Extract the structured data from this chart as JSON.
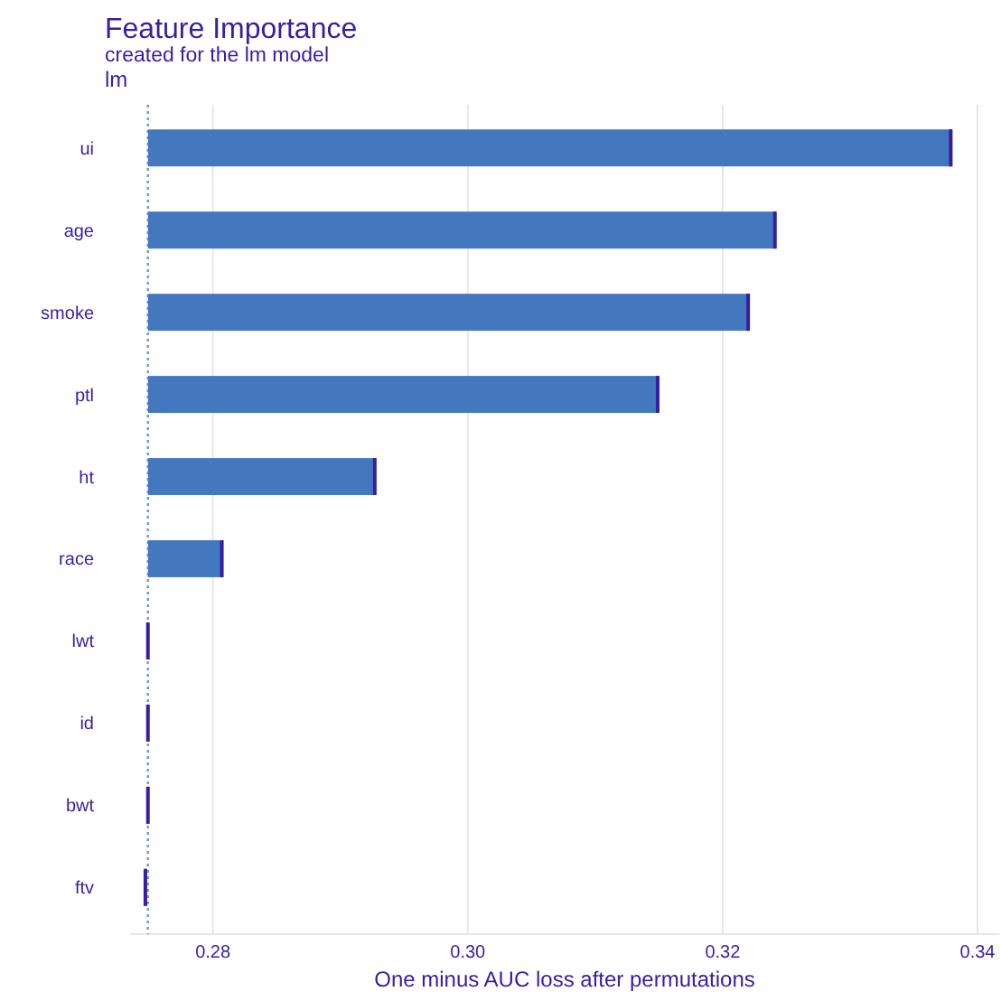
{
  "chart_data": {
    "type": "bar",
    "orientation": "horizontal",
    "title": "Feature Importance",
    "subtitle": "created for the lm model",
    "annotations": [
      "lm"
    ],
    "xlabel": "One minus AUC loss after permutations",
    "categories": [
      "ui",
      "age",
      "smoke",
      "ptl",
      "ht",
      "race",
      "lwt",
      "id",
      "bwt",
      "ftv"
    ],
    "series": [
      {
        "color": "#4378bf",
        "base": [
          0.2749,
          0.2749,
          0.2749,
          0.2749,
          0.2749,
          0.2749,
          null,
          null,
          null,
          null
        ],
        "values": [
          0.063,
          0.0492,
          0.0471,
          0.04,
          0.0178,
          0.0058,
          null,
          null,
          null,
          null
        ]
      },
      {
        "type": "box",
        "color": "#371ea3",
        "boxes": [
          {
            "low": 0.3379,
            "q1": 0.3379,
            "median": 0.3379,
            "q3": 0.3379,
            "high": 0.3379
          },
          {
            "low": 0.3241,
            "q1": 0.3241,
            "median": 0.3241,
            "q3": 0.3241,
            "high": 0.3241
          },
          {
            "low": 0.322,
            "q1": 0.322,
            "median": 0.322,
            "q3": 0.322,
            "high": 0.322
          },
          {
            "low": 0.3149,
            "q1": 0.3149,
            "median": 0.3149,
            "q3": 0.3149,
            "high": 0.3149
          },
          {
            "low": 0.2927,
            "q1": 0.2927,
            "median": 0.2927,
            "q3": 0.2927,
            "high": 0.2927
          },
          {
            "low": 0.2807,
            "q1": 0.2807,
            "median": 0.2807,
            "q3": 0.2807,
            "high": 0.2807
          },
          {
            "low": 0.2749,
            "q1": 0.2749,
            "median": 0.2749,
            "q3": 0.2749,
            "high": 0.2749
          },
          {
            "low": 0.2749,
            "q1": 0.2749,
            "median": 0.2749,
            "q3": 0.2749,
            "high": 0.2749
          },
          {
            "low": 0.2749,
            "q1": 0.2749,
            "median": 0.2749,
            "q3": 0.2749,
            "high": 0.2749
          },
          {
            "low": 0.2747,
            "q1": 0.2747,
            "median": 0.2747,
            "q3": 0.2747,
            "high": 0.2747
          }
        ]
      }
    ],
    "xlim": [
      0.2735,
      0.3417
    ],
    "xticks": [
      {
        "value": 0.28,
        "label": "0.28"
      },
      {
        "value": 0.3,
        "label": "0.30"
      },
      {
        "value": 0.32,
        "label": "0.32"
      },
      {
        "value": 0.34,
        "label": "0.34"
      }
    ],
    "grid": "x",
    "ref_lines": [
      {
        "axis": "x",
        "value": 0.2749,
        "color": "#6a9ad0",
        "line_style": "dotted"
      }
    ]
  }
}
